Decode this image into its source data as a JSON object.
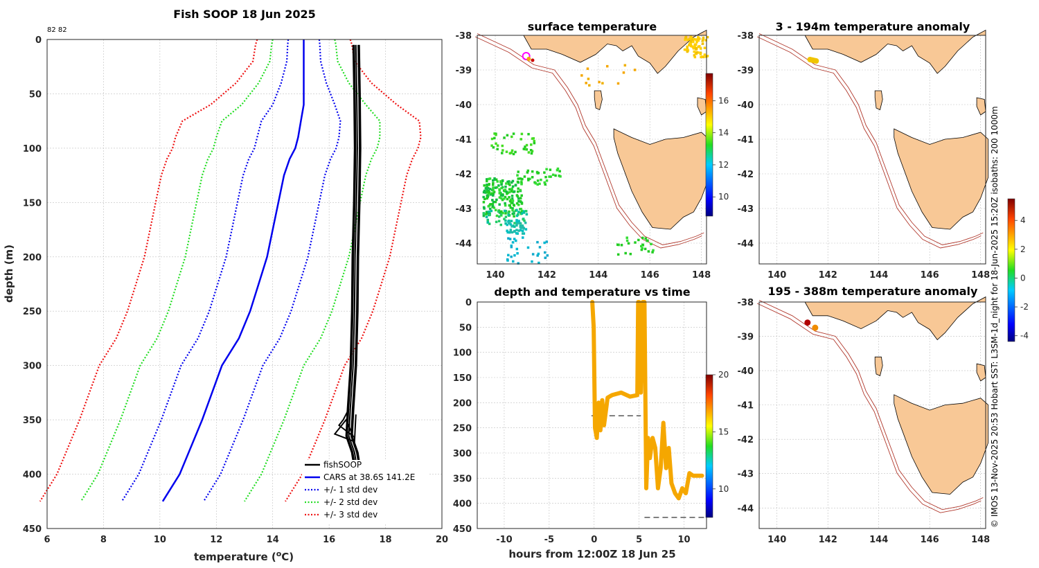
{
  "colors": {
    "land": "#f8c896",
    "isobath": "#b0372b",
    "fish": "#000000",
    "cars": "#0000ee",
    "std1": "#0000ee",
    "std2": "#22dd22",
    "std3": "#ee1111",
    "trace": "#f5a700"
  },
  "chart_data": [
    {
      "id": "profile",
      "type": "line",
      "title": "Fish SOOP 18 Jun 2025",
      "corner_note": "82 82",
      "xlabel": "temperature (",
      "xlabel_sup": "o",
      "xlabel_end": "C)",
      "ylabel": "depth (m)",
      "xlim": [
        6,
        20
      ],
      "ylim": [
        0,
        450
      ],
      "xticks": [
        "6",
        "8",
        "10",
        "12",
        "14",
        "16",
        "18",
        "20"
      ],
      "yticks": [
        "0",
        "50",
        "100",
        "150",
        "200",
        "250",
        "300",
        "350",
        "400",
        "450"
      ],
      "depth": [
        0,
        5,
        20,
        40,
        60,
        75,
        90,
        100,
        110,
        125,
        150,
        175,
        200,
        225,
        250,
        275,
        300,
        350,
        400,
        425
      ],
      "cars": [
        15.1,
        15.1,
        15.1,
        15.1,
        15.1,
        15.0,
        14.9,
        14.8,
        14.6,
        14.4,
        14.2,
        14.0,
        13.8,
        13.5,
        13.2,
        12.8,
        12.2,
        11.5,
        10.7,
        10.1
      ],
      "std": [
        0.55,
        0.57,
        0.6,
        0.8,
        1.1,
        1.4,
        1.45,
        1.45,
        1.45,
        1.45,
        1.45,
        1.45,
        1.45,
        1.45,
        1.45,
        1.45,
        1.45,
        1.45,
        1.45,
        1.45
      ],
      "fish_depth": [
        5,
        50,
        100,
        150,
        200,
        250,
        300,
        340,
        365,
        380,
        388
      ],
      "fish_temp": [
        16.95,
        16.98,
        17.0,
        16.97,
        16.92,
        16.9,
        16.85,
        16.75,
        16.7,
        16.9,
        16.95
      ],
      "legend": [
        {
          "label": "fishSOOP",
          "style": "fish"
        },
        {
          "label": "CARS at 38.6S 141.2E",
          "style": "cars"
        },
        {
          "label": "+/- 1 std dev",
          "style": "std1"
        },
        {
          "label": "+/- 2 std dev",
          "style": "std2"
        },
        {
          "label": "+/- 3 std dev",
          "style": "std3"
        }
      ]
    },
    {
      "id": "sst_map",
      "type": "heatmap",
      "title": "surface temperature",
      "xlim": [
        139.3,
        148.2
      ],
      "ylim": [
        -44.6,
        -38
      ],
      "xticks": [
        "140",
        "142",
        "144",
        "146",
        "148"
      ],
      "yticks": [
        "-38",
        "-39",
        "-40",
        "-41",
        "-42",
        "-43",
        "-44"
      ],
      "colorbar": {
        "range": [
          8.8,
          17.7
        ],
        "ticks": [
          "10",
          "12",
          "14",
          "16"
        ]
      },
      "track_points": [
        [
          141.2,
          -38.6
        ],
        [
          141.4,
          -38.7
        ]
      ]
    },
    {
      "id": "anom_upper",
      "type": "heatmap",
      "title": "3 - 194m temperature anomaly",
      "xlim": [
        139.3,
        148.2
      ],
      "ylim": [
        -44.6,
        -38
      ],
      "xticks": [
        "140",
        "142",
        "144",
        "146",
        "148"
      ],
      "yticks": [
        "-38",
        "-39",
        "-40",
        "-41",
        "-42",
        "-43",
        "-44"
      ],
      "points": [
        {
          "lon": 141.3,
          "lat": -38.7,
          "anomaly": 2.3
        }
      ]
    },
    {
      "id": "anom_lower",
      "type": "heatmap",
      "title": "195 - 388m temperature anomaly",
      "xlim": [
        139.3,
        148.2
      ],
      "ylim": [
        -44.6,
        -38
      ],
      "xticks": [
        "140",
        "142",
        "144",
        "146",
        "148"
      ],
      "yticks": [
        "-38",
        "-39",
        "-40",
        "-41",
        "-42",
        "-43",
        "-44"
      ],
      "points": [
        {
          "lon": 141.2,
          "lat": -38.6,
          "anomaly": 4.5
        },
        {
          "lon": 141.5,
          "lat": -38.75,
          "anomaly": 2.3
        }
      ],
      "colorbar": {
        "range": [
          -4.4,
          5.5
        ],
        "ticks": [
          "4",
          "2",
          "0",
          "-2",
          "-4"
        ]
      }
    },
    {
      "id": "timeseries",
      "type": "line",
      "title": "depth and temperature vs time",
      "xlabel": "hours from 12:00Z 18 Jun 25",
      "xlim": [
        -13,
        12.5
      ],
      "ylim": [
        0,
        450
      ],
      "xticks": [
        "-10",
        "-5",
        "0",
        "5",
        "10"
      ],
      "yticks": [
        "0",
        "50",
        "100",
        "150",
        "200",
        "250",
        "300",
        "350",
        "400",
        "450"
      ],
      "colorbar": {
        "range": [
          7.5,
          20
        ],
        "ticks": [
          "20",
          "15",
          "10"
        ]
      },
      "bottom_marker_1": {
        "x": [
          -0.3,
          5.2
        ],
        "depth": 226
      },
      "bottom_marker_2": {
        "x": [
          5.6,
          12.5
        ],
        "depth": 428
      },
      "hours": [
        -0.2,
        -0.05,
        0.1,
        0.3,
        0.5,
        0.7,
        0.9,
        1.1,
        1.5,
        2.0,
        3.0,
        4.0,
        4.8,
        4.9,
        5.0,
        5.2,
        5.4,
        5.6,
        5.8,
        6.0,
        6.2,
        6.5,
        6.8,
        7.1,
        7.4,
        7.7,
        8.0,
        8.3,
        8.6,
        9.0,
        9.4,
        9.8,
        10.2,
        10.6,
        11.0,
        11.5,
        12.0
      ],
      "depths": [
        0,
        50,
        250,
        270,
        200,
        255,
        195,
        245,
        190,
        185,
        180,
        188,
        185,
        0,
        0,
        180,
        0,
        0,
        370,
        270,
        310,
        270,
        290,
        370,
        330,
        240,
        330,
        290,
        360,
        380,
        390,
        370,
        380,
        340,
        345,
        345,
        345
      ],
      "temp": 17.0
    }
  ],
  "credit": "© IMOS 13-Nov-2025 20:53 Hobart SST: L3SM-1d_night for 18-Jun-2025 15:20Z isobaths: 200  1000m"
}
